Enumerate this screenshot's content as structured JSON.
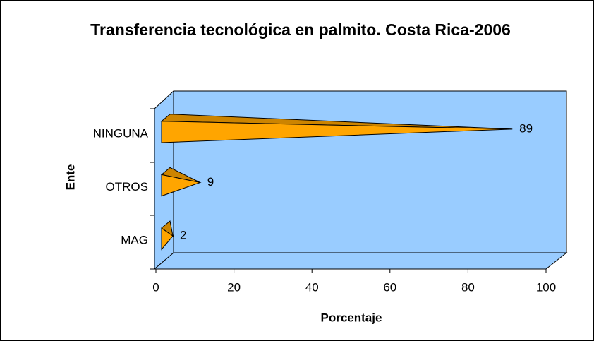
{
  "chart_data": {
    "type": "pyramid_bar",
    "title": "Transferencia tecnológica en palmito. Costa Rica-2006",
    "categories": [
      "NINGUNA",
      "OTROS",
      "MAG"
    ],
    "values": [
      89,
      9,
      2
    ],
    "color": "#ffa500",
    "xlim": [
      0,
      100
    ],
    "xticks": [
      0,
      20,
      40,
      60,
      80,
      100
    ],
    "x_label": "Porcentaje",
    "y_label": "Ente"
  }
}
